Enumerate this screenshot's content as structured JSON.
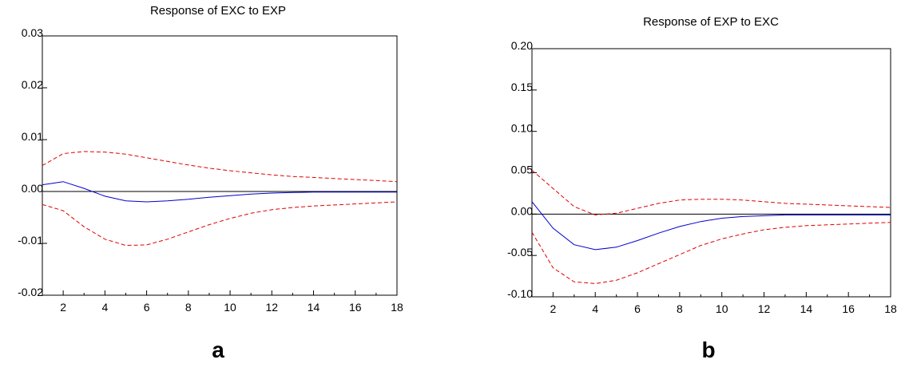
{
  "colors": {
    "response": "#0000cc",
    "band": "#e00000",
    "zero_line": "#000000",
    "frame": "#000000"
  },
  "panel_labels": [
    "a",
    "b"
  ],
  "chart_data": [
    {
      "type": "line",
      "title": "Response of EXC to EXP",
      "xlabel": "",
      "ylabel": "",
      "x": [
        1,
        2,
        3,
        4,
        5,
        6,
        7,
        8,
        9,
        10,
        11,
        12,
        13,
        14,
        15,
        16,
        17,
        18
      ],
      "xlim": [
        1,
        18
      ],
      "ylim": [
        -0.02,
        0.03
      ],
      "xticks": [
        2,
        4,
        6,
        8,
        10,
        12,
        14,
        16,
        18
      ],
      "yticks": [
        -0.02,
        -0.01,
        0.0,
        0.01,
        0.02,
        0.03
      ],
      "ytick_labels": [
        "-0.02",
        "-0.01",
        "0.00",
        "0.01",
        "0.02",
        "0.03"
      ],
      "grid": false,
      "zero_line": true,
      "series": [
        {
          "style": "solid",
          "color": "#0000cc",
          "values": [
            0.0013,
            0.0019,
            0.0006,
            -0.0009,
            -0.0018,
            -0.002,
            -0.0018,
            -0.0015,
            -0.0011,
            -0.0008,
            -0.0005,
            -0.0003,
            -0.0002,
            -0.0001,
            -0.0001,
            -0.0001,
            -0.0001,
            -0.0001
          ]
        },
        {
          "style": "dashed",
          "color": "#e00000",
          "values": [
            0.005,
            0.0073,
            0.0077,
            0.0076,
            0.0072,
            0.0065,
            0.0058,
            0.0051,
            0.0045,
            0.004,
            0.0036,
            0.0032,
            0.0029,
            0.0027,
            0.0025,
            0.0023,
            0.0021,
            0.0019
          ]
        },
        {
          "style": "dashed",
          "color": "#e00000",
          "values": [
            -0.0025,
            -0.0037,
            -0.0068,
            -0.0092,
            -0.0104,
            -0.0103,
            -0.0092,
            -0.0078,
            -0.0064,
            -0.0052,
            -0.0042,
            -0.0035,
            -0.0031,
            -0.0028,
            -0.0026,
            -0.0024,
            -0.0022,
            -0.002
          ]
        }
      ]
    },
    {
      "type": "line",
      "title": "Response of EXP to EXC",
      "xlabel": "",
      "ylabel": "",
      "x": [
        1,
        2,
        3,
        4,
        5,
        6,
        7,
        8,
        9,
        10,
        11,
        12,
        13,
        14,
        15,
        16,
        17,
        18
      ],
      "xlim": [
        1,
        18
      ],
      "ylim": [
        -0.1,
        0.2
      ],
      "xticks": [
        2,
        4,
        6,
        8,
        10,
        12,
        14,
        16,
        18
      ],
      "yticks": [
        -0.1,
        -0.05,
        0.0,
        0.05,
        0.1,
        0.15,
        0.2
      ],
      "ytick_labels": [
        "-0.10",
        "-0.05",
        "0.00",
        "0.05",
        "0.10",
        "0.15",
        "0.20"
      ],
      "grid": false,
      "zero_line": true,
      "series": [
        {
          "style": "solid",
          "color": "#0000cc",
          "values": [
            0.015,
            -0.017,
            -0.037,
            -0.043,
            -0.04,
            -0.032,
            -0.023,
            -0.015,
            -0.009,
            -0.005,
            -0.003,
            -0.002,
            -0.001,
            -0.001,
            -0.001,
            -0.001,
            -0.001,
            -0.001
          ]
        },
        {
          "style": "dashed",
          "color": "#e00000",
          "values": [
            0.053,
            0.031,
            0.009,
            -0.001,
            0.001,
            0.007,
            0.013,
            0.017,
            0.018,
            0.018,
            0.017,
            0.015,
            0.013,
            0.012,
            0.011,
            0.01,
            0.009,
            0.008
          ]
        },
        {
          "style": "dashed",
          "color": "#e00000",
          "values": [
            -0.022,
            -0.065,
            -0.082,
            -0.084,
            -0.08,
            -0.071,
            -0.06,
            -0.049,
            -0.038,
            -0.03,
            -0.024,
            -0.019,
            -0.016,
            -0.014,
            -0.013,
            -0.012,
            -0.011,
            -0.01
          ]
        }
      ]
    }
  ]
}
